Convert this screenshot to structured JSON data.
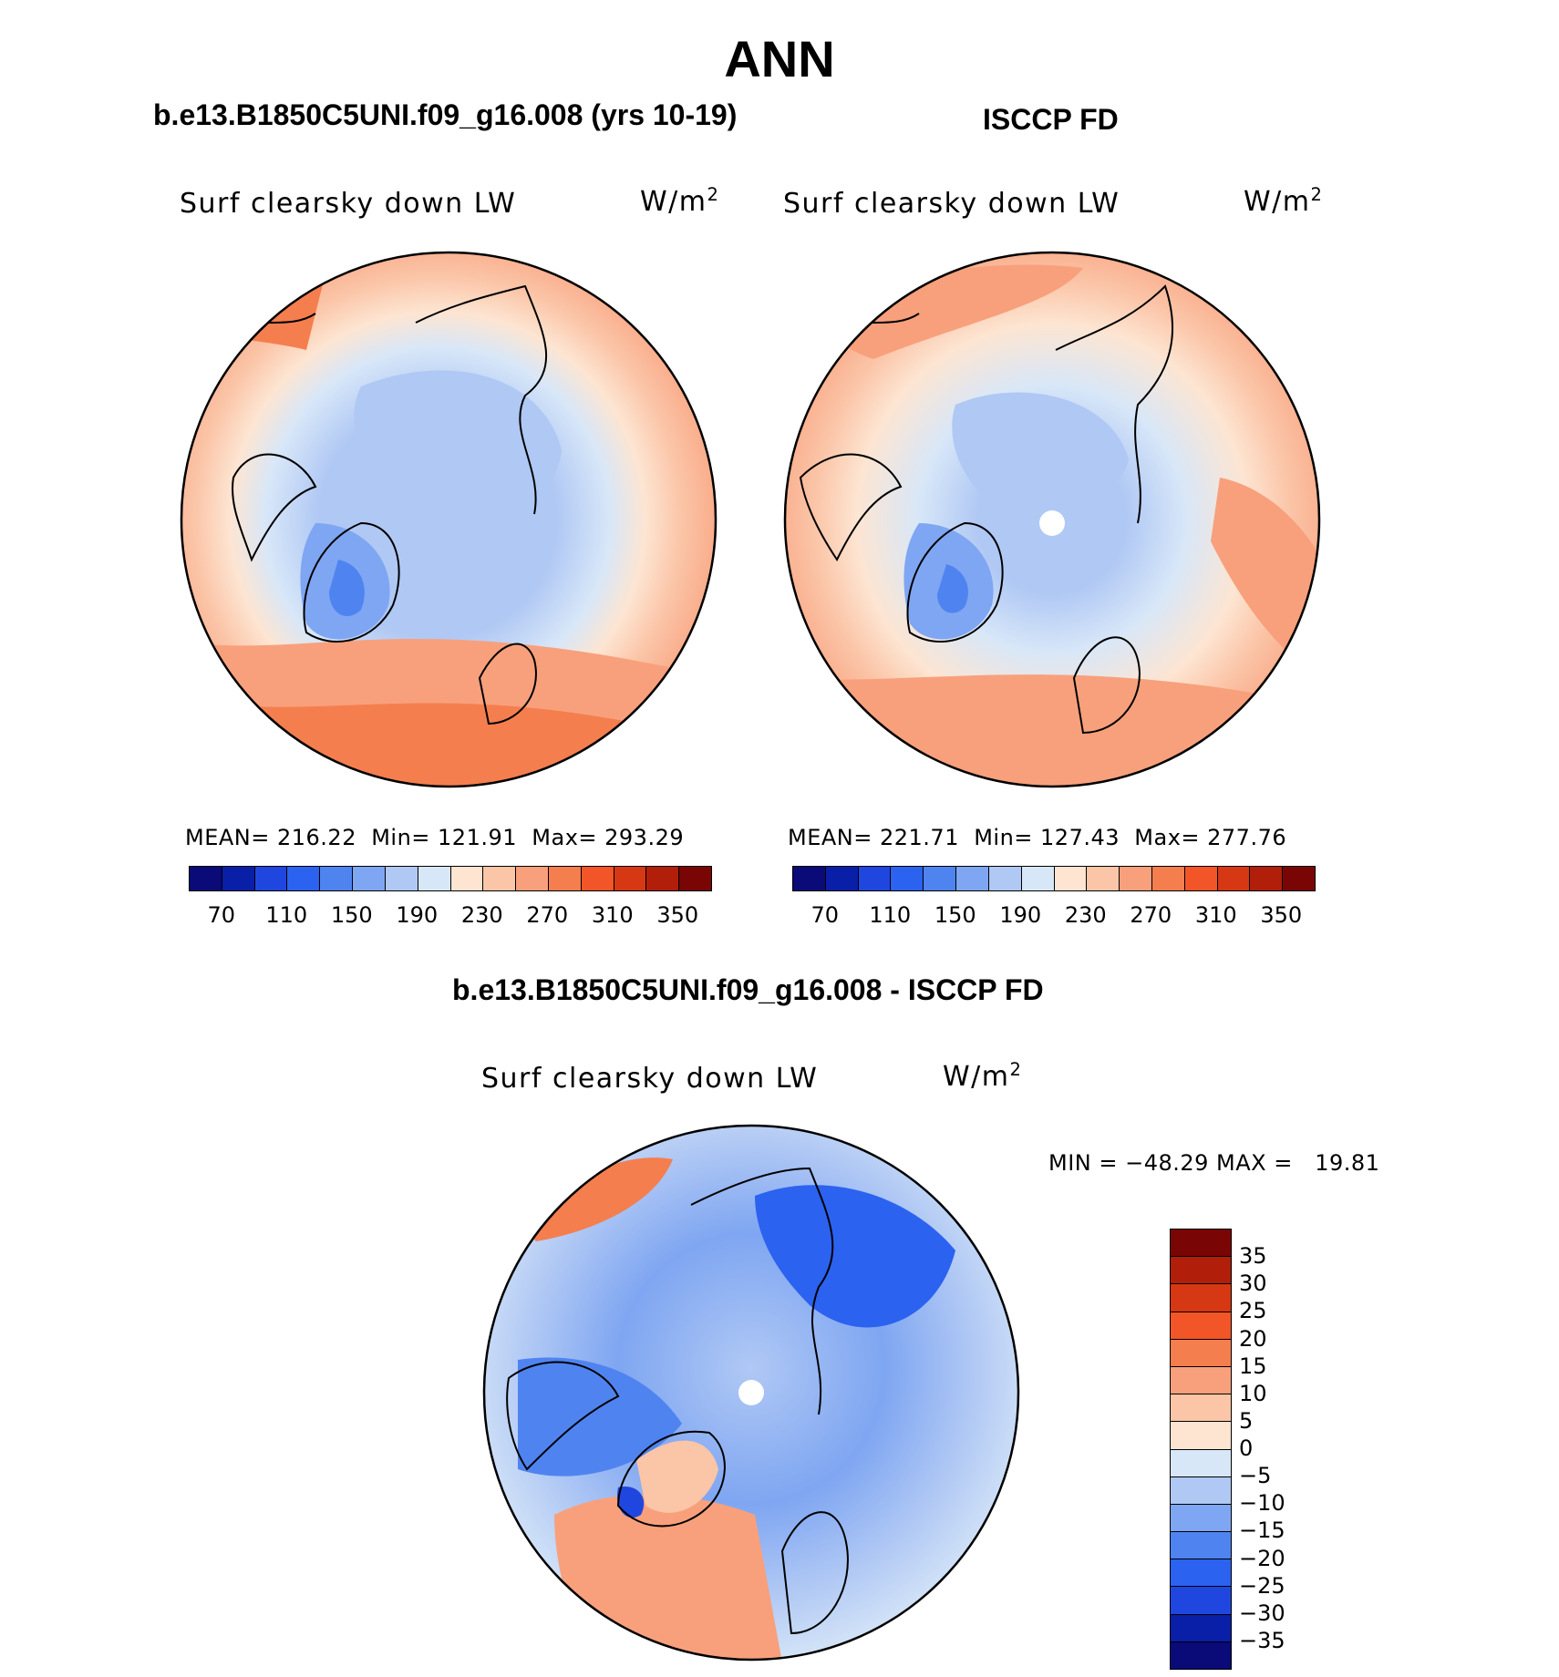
{
  "title": "ANN",
  "panels": {
    "model": {
      "run_title": "b.e13.B1850C5UNI.f09_g16.008 (yrs 10-19)",
      "var_label": "Surf clearsky down LW",
      "units_base": "W/m",
      "units_exp": "2",
      "stats": "MEAN= 216.22  Min= 121.91  Max= 293.29"
    },
    "obs": {
      "run_title": "ISCCP FD",
      "var_label": "Surf clearsky down LW",
      "units_base": "W/m",
      "units_exp": "2",
      "stats": "MEAN= 221.71  Min= 127.43  Max= 277.76"
    },
    "diff": {
      "run_title": "b.e13.B1850C5UNI.f09_g16.008 - ISCCP FD",
      "var_label": "Surf clearsky down LW",
      "units_base": "W/m",
      "units_exp": "2",
      "stats": "MIN = −48.29 MAX =   19.81"
    }
  },
  "chart_data": [
    {
      "type": "heatmap",
      "projection": "north polar stereographic",
      "title": "Surf clearsky down LW",
      "units": "W/m2",
      "panel": "b.e13.B1850C5UNI.f09_g16.008 (yrs 10-19)",
      "mean": 216.22,
      "min": 121.91,
      "max": 293.29,
      "levels": [
        70,
        90,
        110,
        130,
        150,
        170,
        190,
        210,
        230,
        250,
        270,
        290,
        310,
        330,
        350
      ],
      "tick_labels": [
        "70",
        "110",
        "150",
        "190",
        "230",
        "270",
        "310",
        "350"
      ],
      "colors": [
        "#0a0a78",
        "#0a1fa8",
        "#1f47e0",
        "#2c62f0",
        "#4f84f0",
        "#7fa6f2",
        "#b0c8f4",
        "#d8e7f8",
        "#fde5d2",
        "#fbc5a8",
        "#f8a07c",
        "#f57e4f",
        "#f25528",
        "#d63813",
        "#b11f0a",
        "#7a0505"
      ]
    },
    {
      "type": "heatmap",
      "projection": "north polar stereographic",
      "title": "Surf clearsky down LW",
      "units": "W/m2",
      "panel": "ISCCP FD",
      "mean": 221.71,
      "min": 127.43,
      "max": 277.76,
      "levels": [
        70,
        90,
        110,
        130,
        150,
        170,
        190,
        210,
        230,
        250,
        270,
        290,
        310,
        330,
        350
      ],
      "tick_labels": [
        "70",
        "110",
        "150",
        "190",
        "230",
        "270",
        "310",
        "350"
      ],
      "colors": [
        "#0a0a78",
        "#0a1fa8",
        "#1f47e0",
        "#2c62f0",
        "#4f84f0",
        "#7fa6f2",
        "#b0c8f4",
        "#d8e7f8",
        "#fde5d2",
        "#fbc5a8",
        "#f8a07c",
        "#f57e4f",
        "#f25528",
        "#d63813",
        "#b11f0a",
        "#7a0505"
      ]
    },
    {
      "type": "heatmap",
      "projection": "north polar stereographic",
      "title": "Surf clearsky down LW",
      "units": "W/m2",
      "panel": "b.e13.B1850C5UNI.f09_g16.008 - ISCCP FD",
      "min": -48.29,
      "max": 19.81,
      "levels": [
        35,
        30,
        25,
        20,
        15,
        10,
        5,
        0,
        -5,
        -10,
        -15,
        -20,
        -25,
        -30,
        -35
      ],
      "tick_labels": [
        "35",
        "30",
        "25",
        "20",
        "15",
        "10",
        "5",
        "0",
        "−5",
        "−10",
        "−15",
        "−20",
        "−25",
        "−30",
        "−35"
      ],
      "colors": [
        "#7a0505",
        "#b11f0a",
        "#d63813",
        "#f25528",
        "#f57e4f",
        "#f8a07c",
        "#fbc5a8",
        "#fde5d2",
        "#d8e7f8",
        "#b0c8f4",
        "#7fa6f2",
        "#4f84f0",
        "#2c62f0",
        "#1f47e0",
        "#0a1fa8",
        "#0a0a78"
      ]
    }
  ]
}
